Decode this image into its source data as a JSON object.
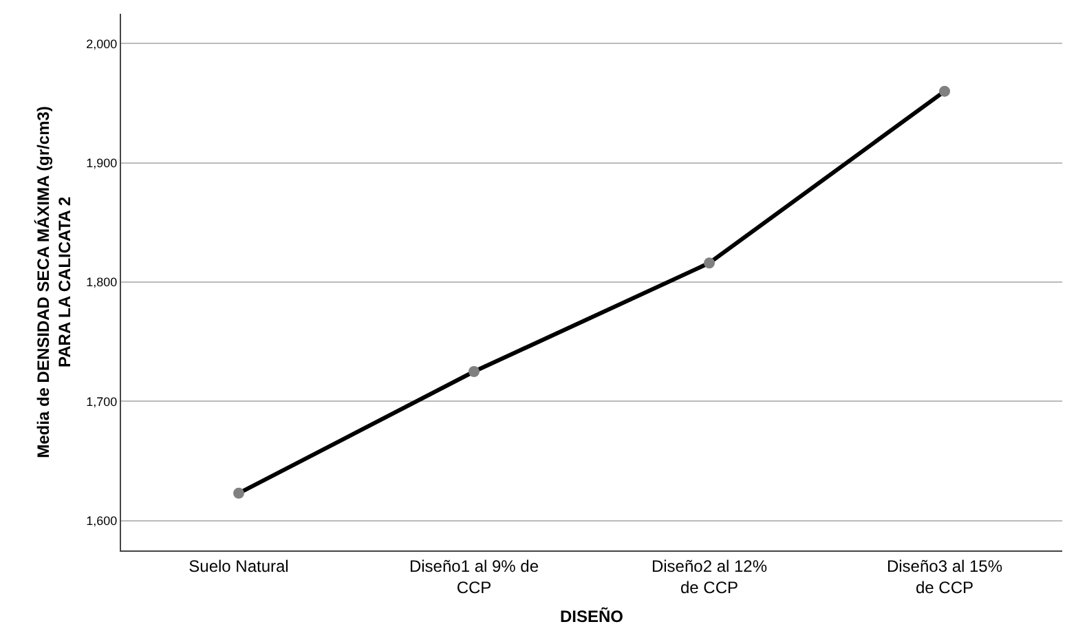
{
  "chart_data": {
    "type": "line",
    "xlabel": "DISEÑO",
    "ylabel": "Media de DENSIDAD SECA MÁXIMA (gr/cm3) PARA LA CALICATA 2",
    "categories": [
      "Suelo Natural",
      "Diseño1 al 9% de CCP",
      "Diseño2 al 12% de CCP",
      "Diseño3 al 15% de CCP"
    ],
    "series": [
      {
        "color": "#000000",
        "values": [
          1623,
          1725,
          1816,
          1960
        ]
      }
    ],
    "ylim": [
      1575,
      2025
    ],
    "yticks": [
      {
        "value": 1600,
        "label": "1,600"
      },
      {
        "value": 1700,
        "label": "1,700"
      },
      {
        "value": 1800,
        "label": "1,800"
      },
      {
        "value": 1900,
        "label": "1,900"
      },
      {
        "value": 2000,
        "label": "2,000"
      }
    ],
    "grid": "y",
    "marker": "circle",
    "line_style": "solid"
  }
}
